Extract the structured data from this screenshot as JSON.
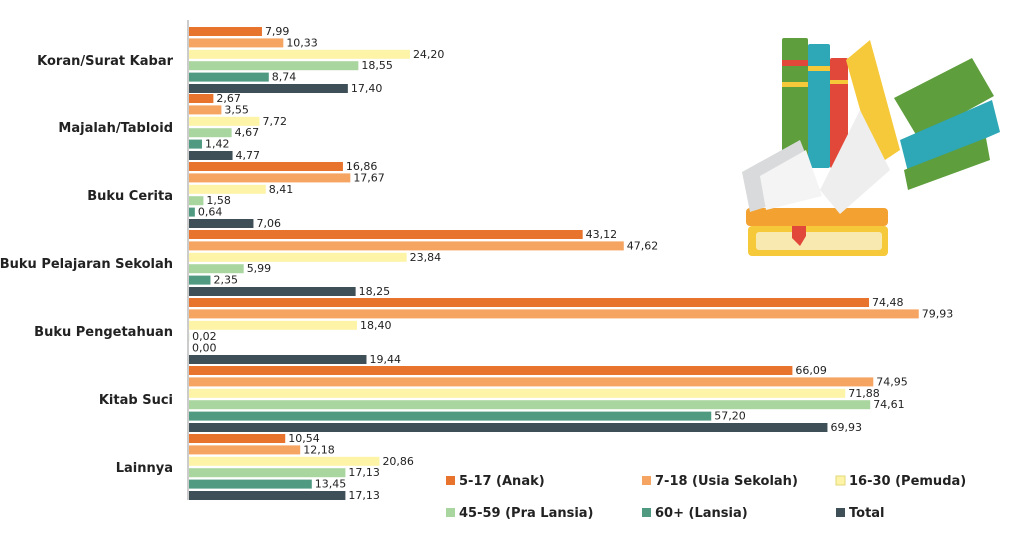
{
  "chart_data": {
    "type": "bar",
    "orientation": "horizontal",
    "title": "",
    "xlabel": "",
    "ylabel": "",
    "grid": false,
    "legend_position": "bottom-right",
    "categories": [
      "Koran/Surat Kabar",
      "Majalah/Tabloid",
      "Buku Cerita",
      "Buku Pelajaran Sekolah",
      "Buku Pengetahuan",
      "Kitab Suci",
      "Lainnya"
    ],
    "series": [
      {
        "name": "5-17 (Anak)",
        "color": "#e8732c",
        "values": [
          7.99,
          2.67,
          16.86,
          43.12,
          74.48,
          66.09,
          10.54
        ],
        "labels": [
          "7,99",
          "2,67",
          "16,86",
          "43,12",
          "74,48",
          "66,09",
          "10,54"
        ]
      },
      {
        "name": "7-18 (Usia Sekolah)",
        "color": "#f5a462",
        "values": [
          10.33,
          3.55,
          17.67,
          47.62,
          79.93,
          74.95,
          12.18
        ],
        "labels": [
          "10,33",
          "3,55",
          "17,67",
          "47,62",
          "79,93",
          "74,95",
          "12,18"
        ]
      },
      {
        "name": "16-30 (Pemuda)",
        "color": "#fdf4a8",
        "values": [
          24.2,
          7.72,
          8.41,
          23.84,
          18.4,
          71.88,
          20.86
        ],
        "labels": [
          "24,20",
          "7,72",
          "8,41",
          "23,84",
          "18,40",
          "71,88",
          "20,86"
        ]
      },
      {
        "name": "45-59 (Pra Lansia)",
        "color": "#a9d59f",
        "values": [
          18.55,
          4.67,
          1.58,
          5.99,
          0.02,
          74.61,
          17.13
        ],
        "labels": [
          "18,55",
          "4,67",
          "1,58",
          "5,99",
          "0,02",
          "74,61",
          "17,13"
        ]
      },
      {
        "name": "60+ (Lansia)",
        "color": "#4f9a80",
        "values": [
          8.74,
          1.42,
          0.64,
          2.35,
          0.0,
          57.2,
          13.45
        ],
        "labels": [
          "8,74",
          "1,42",
          "0,64",
          "2,35",
          "0,00",
          "57,20",
          "13,45"
        ]
      },
      {
        "name": "Total",
        "color": "#3f4f58",
        "values": [
          17.4,
          4.77,
          7.06,
          18.25,
          19.44,
          69.93,
          17.13
        ],
        "labels": [
          "17,40",
          "4,77",
          "7,06",
          "18,25",
          "19,44",
          "69,93",
          "17,13"
        ]
      }
    ],
    "xlim": [
      0,
      80
    ]
  },
  "colors": {
    "books_green": "#5e9e3c",
    "books_teal": "#2ea7b6",
    "books_yellow": "#f6c93a",
    "books_red": "#e2483a",
    "books_orange": "#f3a231",
    "books_gray": "#d9dadb"
  }
}
